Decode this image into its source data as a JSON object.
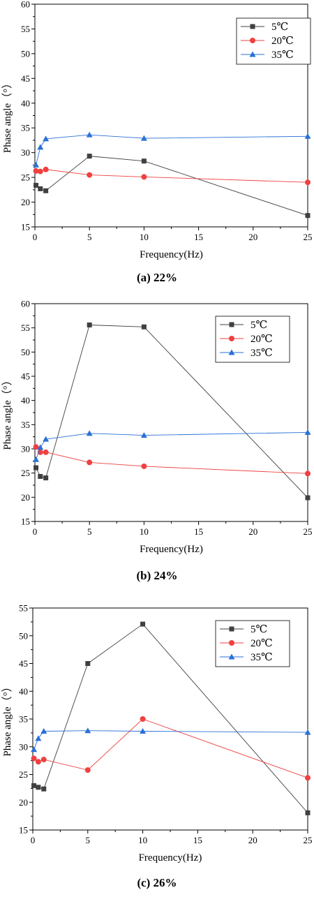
{
  "chart_data": [
    {
      "type": "line",
      "caption": "(a) 22%",
      "xlabel": "Frequency(Hz)",
      "ylabel": "Phase angle（°）",
      "xlim": [
        0,
        25
      ],
      "ylim": [
        15,
        60
      ],
      "xticks": [
        0,
        5,
        10,
        15,
        20,
        25
      ],
      "yticks": [
        15,
        20,
        25,
        30,
        35,
        40,
        45,
        50,
        55,
        60
      ],
      "legend_position": "top-right",
      "x": [
        0.1,
        0.5,
        1,
        5,
        10,
        25
      ],
      "series": [
        {
          "name": "5℃",
          "marker": "square",
          "color": "#404040",
          "values": [
            23.4,
            22.7,
            22.3,
            29.3,
            28.3,
            17.3
          ]
        },
        {
          "name": "20℃",
          "marker": "circle",
          "color": "#f04040",
          "values": [
            26.3,
            26.2,
            26.6,
            25.5,
            25.1,
            24.0
          ]
        },
        {
          "name": "35℃",
          "marker": "triangle",
          "color": "#2a70d8",
          "values": [
            27.5,
            31.1,
            32.8,
            33.6,
            32.9,
            33.3
          ]
        }
      ]
    },
    {
      "type": "line",
      "caption": "(b) 24%",
      "xlabel": "Frequency(Hz)",
      "ylabel": "Phase angle（°）",
      "xlim": [
        0,
        25
      ],
      "ylim": [
        15,
        60
      ],
      "xticks": [
        0,
        5,
        10,
        15,
        20,
        25
      ],
      "yticks": [
        15,
        20,
        25,
        30,
        35,
        40,
        45,
        50,
        55,
        60
      ],
      "legend_position": "top-right",
      "x": [
        0.1,
        0.5,
        1,
        5,
        10,
        25
      ],
      "series": [
        {
          "name": "5℃",
          "marker": "square",
          "color": "#404040",
          "values": [
            26.1,
            24.3,
            24.0,
            55.6,
            55.2,
            19.9
          ]
        },
        {
          "name": "20℃",
          "marker": "circle",
          "color": "#f04040",
          "values": [
            30.4,
            29.3,
            29.3,
            27.2,
            26.4,
            24.9
          ]
        },
        {
          "name": "35℃",
          "marker": "triangle",
          "color": "#2a70d8",
          "values": [
            27.8,
            30.3,
            32.0,
            33.2,
            32.8,
            33.4
          ]
        }
      ]
    },
    {
      "type": "line",
      "caption": "(c) 26%",
      "xlabel": "Frequency(Hz)",
      "ylabel": "Phase angle（°）",
      "xlim": [
        0,
        25
      ],
      "ylim": [
        15,
        55
      ],
      "xticks": [
        0,
        5,
        10,
        15,
        20,
        25
      ],
      "yticks": [
        15,
        20,
        25,
        30,
        35,
        40,
        45,
        50,
        55
      ],
      "legend_position": "top-right",
      "x": [
        0.1,
        0.5,
        1,
        5,
        10,
        25
      ],
      "series": [
        {
          "name": "5℃",
          "marker": "square",
          "color": "#404040",
          "values": [
            23.0,
            22.7,
            22.4,
            45.0,
            52.1,
            18.1
          ]
        },
        {
          "name": "20℃",
          "marker": "circle",
          "color": "#f04040",
          "values": [
            27.9,
            27.3,
            27.7,
            25.8,
            35.0,
            24.4
          ]
        },
        {
          "name": "35℃",
          "marker": "triangle",
          "color": "#2a70d8",
          "values": [
            29.5,
            31.5,
            32.8,
            32.9,
            32.8,
            32.6
          ]
        }
      ]
    }
  ]
}
